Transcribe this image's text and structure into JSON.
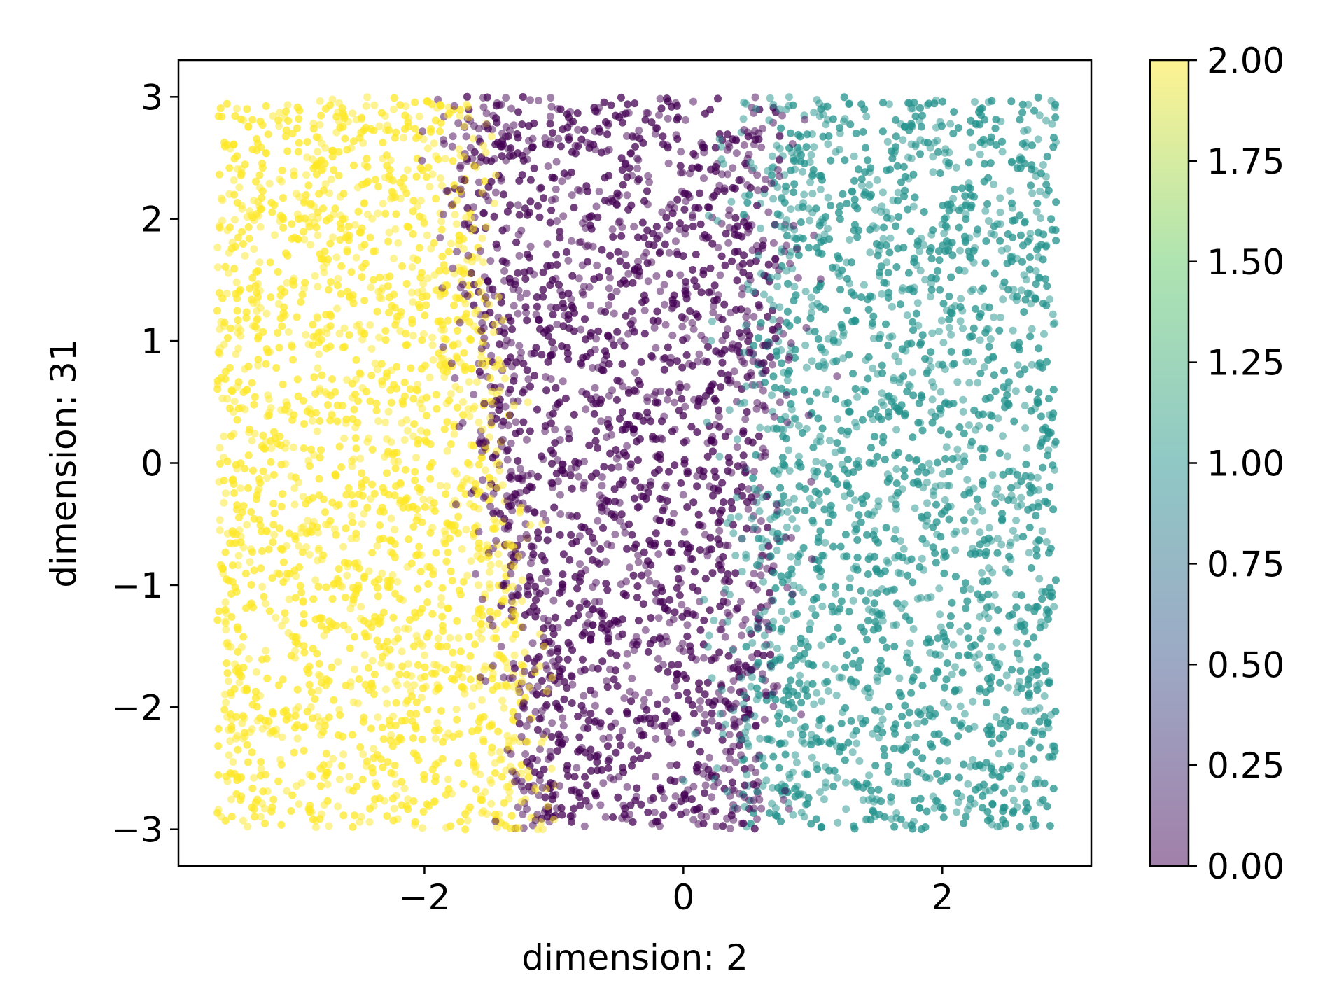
{
  "chart_data": {
    "type": "scatter",
    "title": "",
    "xlabel": "dimension: 2",
    "ylabel": "dimension: 31",
    "xlim": [
      -3.9,
      3.15
    ],
    "ylim": [
      -3.3,
      3.3
    ],
    "xticks": [
      -2,
      0,
      2
    ],
    "yticks": [
      -3,
      -2,
      -1,
      0,
      1,
      2,
      3
    ],
    "xtick_labels": [
      "−2",
      "0",
      "2"
    ],
    "ytick_labels": [
      "−3",
      "−2",
      "−1",
      "0",
      "1",
      "2",
      "3"
    ],
    "grid": false,
    "point_alpha": 0.5,
    "regions": [
      {
        "class_value": 2,
        "color": "#fde725",
        "x_from": -3.6,
        "boundary_at_y_top": -1.75,
        "boundary_at_y_bottom": -1.15
      },
      {
        "class_value": 0,
        "color": "#440154",
        "boundary_at_y_top": 0.45,
        "boundary_at_y_bottom": 0.3
      },
      {
        "class_value": 1,
        "color": "#21918c",
        "x_to": 2.88
      }
    ],
    "data_y_range": [
      -3,
      3
    ],
    "colorbar": {
      "min": 0.0,
      "max": 2.0,
      "ticks": [
        0.0,
        0.25,
        0.5,
        0.75,
        1.0,
        1.25,
        1.5,
        1.75,
        2.0
      ],
      "tick_labels": [
        "0.00",
        "0.25",
        "0.50",
        "0.75",
        "1.00",
        "1.25",
        "1.50",
        "1.75",
        "2.00"
      ],
      "colormap": "viridis",
      "colormap_stops": [
        "#440154",
        "#3b528b",
        "#21918c",
        "#5ec962",
        "#fde725"
      ],
      "alpha": 0.5
    }
  }
}
